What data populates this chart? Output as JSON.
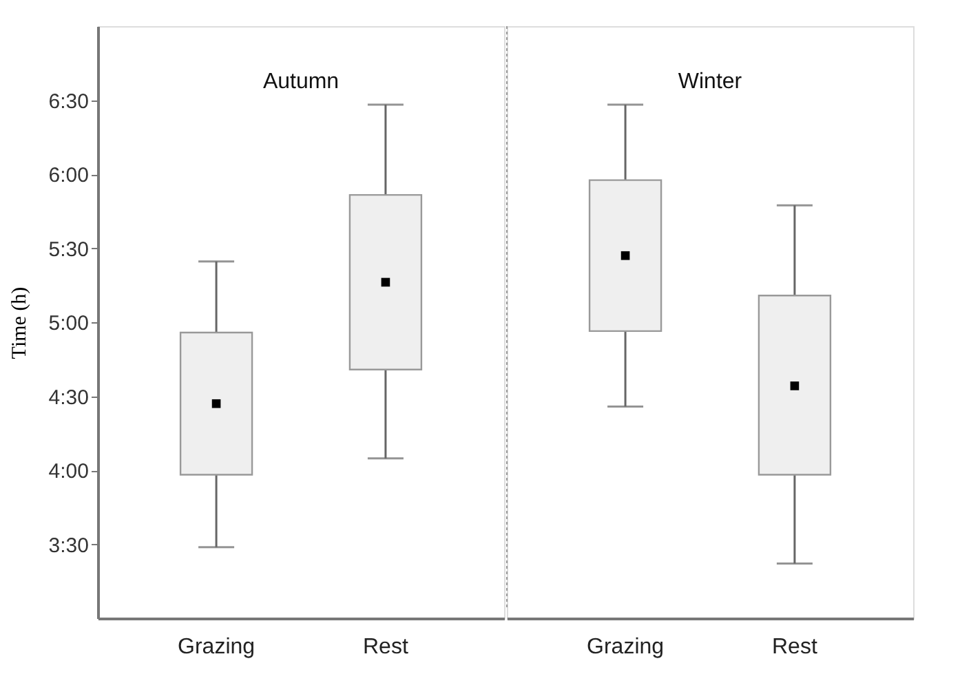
{
  "chart_data": [
    {
      "type": "box",
      "title": "Autumn",
      "ylabel": "Time (h)",
      "categories": [
        "Grazing",
        "Rest"
      ],
      "ylim": [
        3,
        7
      ],
      "yticks": [
        {
          "value": 3.5,
          "label": "3:30"
        },
        {
          "value": 4,
          "label": "4:00"
        },
        {
          "value": 4.5,
          "label": "4:30"
        },
        {
          "value": 5,
          "label": "5:00"
        },
        {
          "value": 5.5,
          "label": "5:30"
        },
        {
          "value": 6,
          "label": "6:00"
        },
        {
          "value": 6.5,
          "label": "6:30"
        }
      ],
      "color": "#efefef",
      "boxes": [
        {
          "low": 3.48,
          "q1": 3.97,
          "median": 4.45,
          "q3": 4.93,
          "high": 5.41
        },
        {
          "low": 4.08,
          "q1": 4.68,
          "median": 5.27,
          "q3": 5.86,
          "high": 6.47
        }
      ]
    },
    {
      "type": "box",
      "title": "Winter",
      "categories": [
        "Grazing",
        "Rest"
      ],
      "ylim": [
        3,
        7
      ],
      "tick_labels": "x",
      "color": "#efefef",
      "boxes": [
        {
          "low": 4.43,
          "q1": 4.94,
          "median": 5.45,
          "q3": 5.96,
          "high": 6.47
        },
        {
          "low": 3.37,
          "q1": 3.97,
          "median": 4.57,
          "q3": 5.18,
          "high": 5.79
        }
      ]
    }
  ]
}
